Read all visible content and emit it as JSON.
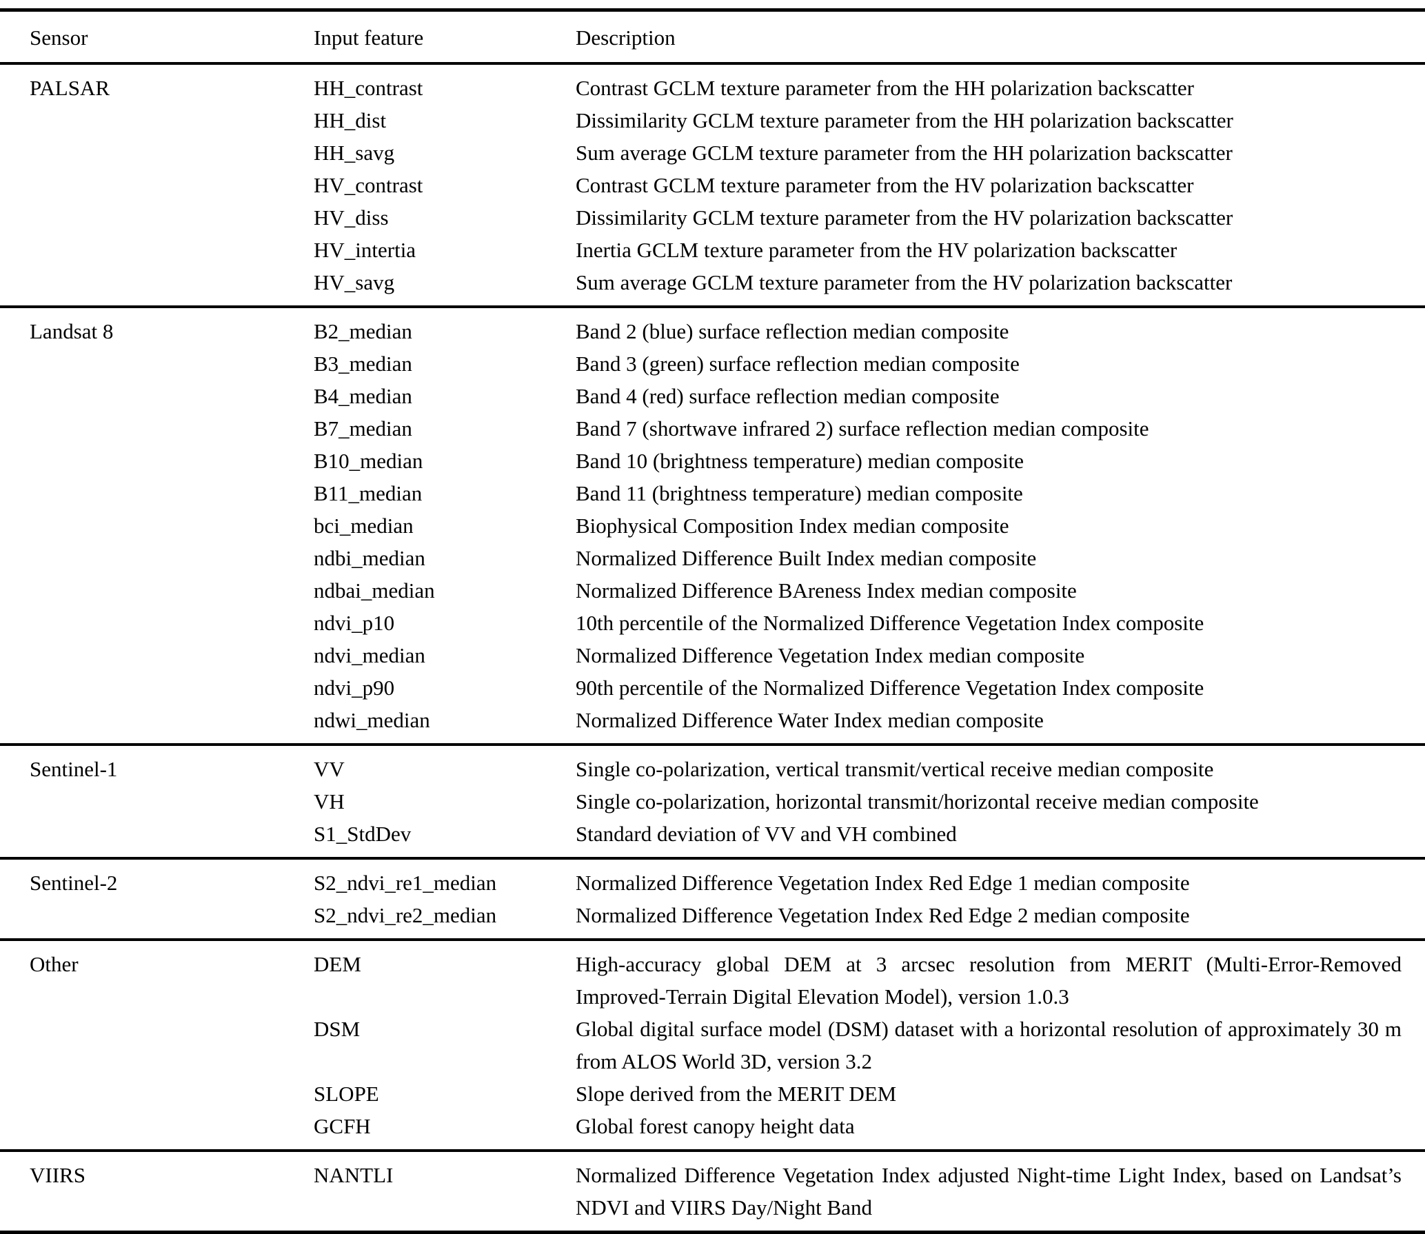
{
  "table": {
    "headers": [
      "Sensor",
      "Input feature",
      "Description"
    ],
    "sections": [
      {
        "sensor": "PALSAR",
        "rows": [
          {
            "feature": "HH_contrast",
            "description": "Contrast GCLM texture parameter from the HH polarization backscatter"
          },
          {
            "feature": "HH_dist",
            "description": "Dissimilarity GCLM texture parameter from the HH polarization backscatter"
          },
          {
            "feature": "HH_savg",
            "description": "Sum average GCLM texture parameter from the HH polarization backscatter"
          },
          {
            "feature": "HV_contrast",
            "description": "Contrast GCLM texture parameter from the HV polarization backscatter"
          },
          {
            "feature": "HV_diss",
            "description": "Dissimilarity GCLM texture parameter from the HV polarization backscatter"
          },
          {
            "feature": "HV_intertia",
            "description": "Inertia GCLM texture parameter from the HV polarization backscatter"
          },
          {
            "feature": "HV_savg",
            "description": "Sum average GCLM texture parameter from the HV polarization backscatter"
          }
        ]
      },
      {
        "sensor": "Landsat 8",
        "rows": [
          {
            "feature": "B2_median",
            "description": "Band 2 (blue) surface reflection median composite"
          },
          {
            "feature": "B3_median",
            "description": "Band 3 (green) surface reflection median composite"
          },
          {
            "feature": "B4_median",
            "description": "Band 4 (red) surface reflection median composite"
          },
          {
            "feature": "B7_median",
            "description": "Band 7 (shortwave infrared 2) surface reflection median composite"
          },
          {
            "feature": "B10_median",
            "description": "Band 10 (brightness temperature) median composite"
          },
          {
            "feature": "B11_median",
            "description": "Band 11 (brightness temperature) median composite"
          },
          {
            "feature": "bci_median",
            "description": "Biophysical Composition Index median composite"
          },
          {
            "feature": "ndbi_median",
            "description": "Normalized Difference Built Index median composite"
          },
          {
            "feature": "ndbai_median",
            "description": "Normalized Difference BAreness Index median composite"
          },
          {
            "feature": "ndvi_p10",
            "description": "10th percentile of the Normalized Difference Vegetation Index composite"
          },
          {
            "feature": "ndvi_median",
            "description": "Normalized Difference Vegetation Index median composite"
          },
          {
            "feature": "ndvi_p90",
            "description": "90th percentile of the Normalized Difference Vegetation Index composite"
          },
          {
            "feature": "ndwi_median",
            "description": "Normalized Difference Water Index median composite"
          }
        ]
      },
      {
        "sensor": "Sentinel-1",
        "rows": [
          {
            "feature": "VV",
            "description": "Single co-polarization, vertical transmit/vertical receive median composite"
          },
          {
            "feature": "VH",
            "description": "Single co-polarization, horizontal transmit/horizontal receive median composite"
          },
          {
            "feature": "S1_StdDev",
            "description": "Standard deviation of VV and VH combined"
          }
        ]
      },
      {
        "sensor": "Sentinel-2",
        "rows": [
          {
            "feature": "S2_ndvi_re1_median",
            "description": "Normalized Difference Vegetation Index Red Edge 1 median composite"
          },
          {
            "feature": "S2_ndvi_re2_median",
            "description": "Normalized Difference Vegetation Index Red Edge 2 median composite"
          }
        ]
      },
      {
        "sensor": "Other",
        "rows": [
          {
            "feature": "DEM",
            "description": "High-accuracy global DEM at 3 arcsec resolution from MERIT (Multi-Error-Removed Improved-Terrain Digital Elevation Model), version 1.0.3"
          },
          {
            "feature": "DSM",
            "description": "Global digital surface model (DSM) dataset with a horizontal resolution of approximately 30 m from ALOS World 3D, version 3.2"
          },
          {
            "feature": "SLOPE",
            "description": "Slope derived from the MERIT DEM"
          },
          {
            "feature": "GCFH",
            "description": "Global forest canopy height data"
          }
        ]
      },
      {
        "sensor": "VIIRS",
        "rows": [
          {
            "feature": "NANTLI",
            "description": "Normalized Difference Vegetation Index adjusted Night-time Light Index, based on Landsat’s NDVI and VIIRS Day/Night Band"
          }
        ]
      }
    ]
  }
}
